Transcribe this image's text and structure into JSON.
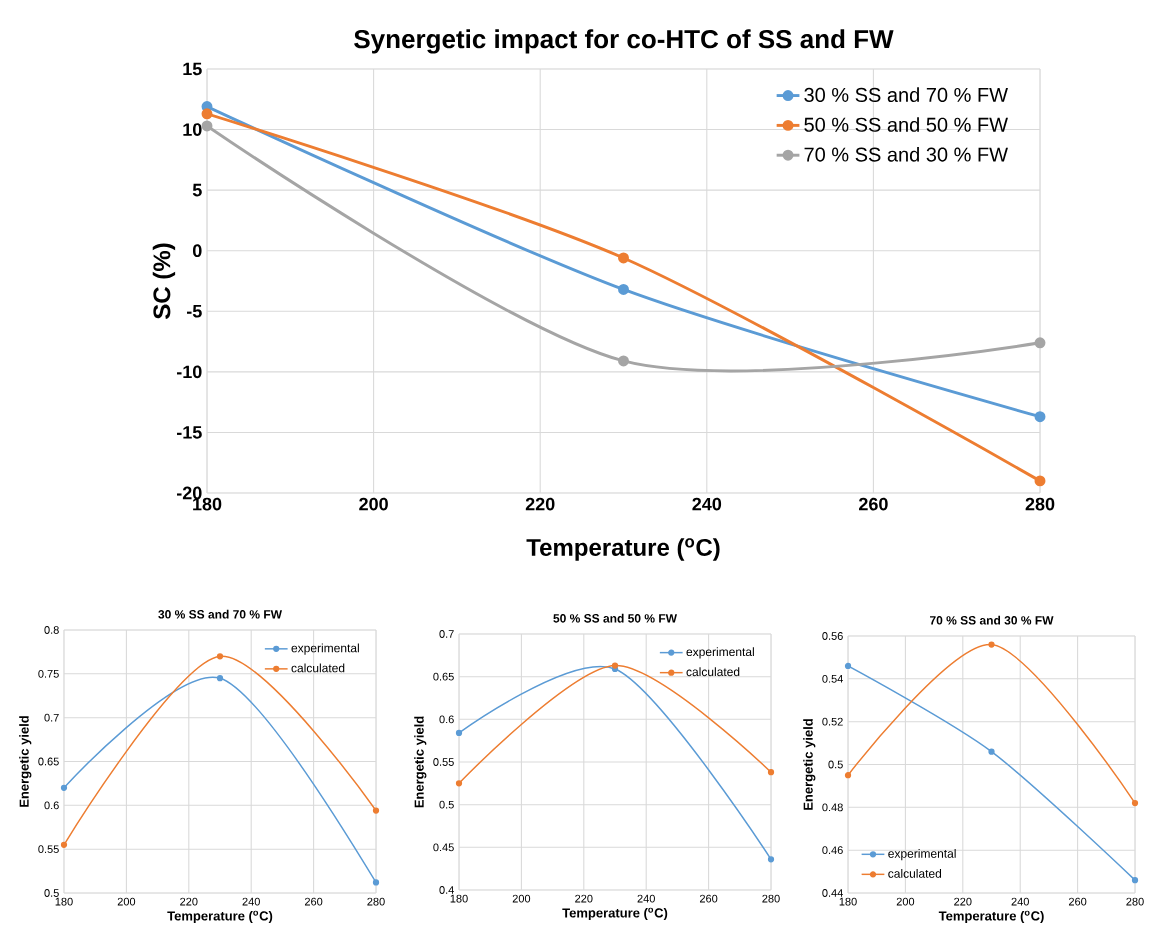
{
  "chart_data": [
    {
      "type": "line",
      "title": "Synergetic impact for co-HTC of SS and FW",
      "xlabel": "Temperature ($^{o}$C)",
      "ylabel": "SC (%)",
      "x": [
        180,
        230,
        280
      ],
      "series": [
        {
          "name": "30 % SS and 70 % FW",
          "color": "#5b9bd5",
          "values": [
            11.9,
            -3.2,
            -13.7
          ]
        },
        {
          "name": "50 % SS and 50 % FW",
          "color": "#ed7d31",
          "values": [
            11.3,
            -0.6,
            -19.0
          ]
        },
        {
          "name": "70 % SS and 30 % FW",
          "color": "#a5a5a5",
          "values": [
            10.3,
            -9.1,
            -7.6
          ]
        }
      ],
      "xlim": [
        180,
        280
      ],
      "ylim": [
        -20,
        15
      ],
      "xticks": [
        180,
        200,
        220,
        240,
        260,
        280
      ],
      "yticks": [
        -20,
        -15,
        -10,
        -5,
        0,
        5,
        10,
        15
      ],
      "grid": true,
      "legend": "top right",
      "marker": "circle"
    },
    {
      "type": "line",
      "title": "30 % SS and 70 % FW",
      "xlabel": "Temperature ($^{o}$C)",
      "ylabel": "Energetic yield",
      "x": [
        180,
        230,
        280
      ],
      "series": [
        {
          "name": "experimental",
          "color": "#5b9bd5",
          "values": [
            0.62,
            0.745,
            0.512
          ]
        },
        {
          "name": "calculated",
          "color": "#ed7d31",
          "values": [
            0.555,
            0.77,
            0.594
          ]
        }
      ],
      "xlim": [
        180,
        280
      ],
      "ylim": [
        0.5,
        0.8
      ],
      "xticks": [
        180,
        200,
        220,
        240,
        260,
        280
      ],
      "yticks": [
        0.5,
        0.55,
        0.6,
        0.65,
        0.7,
        0.75,
        0.8
      ],
      "grid": true,
      "legend": "top right",
      "marker": "circle"
    },
    {
      "type": "line",
      "title": "50 % SS and 50 % FW",
      "xlabel": "Temperature ($^{o}$C)",
      "ylabel": "Energetic yield",
      "x": [
        180,
        230,
        280
      ],
      "series": [
        {
          "name": "experimental",
          "color": "#5b9bd5",
          "values": [
            0.584,
            0.659,
            0.436
          ]
        },
        {
          "name": "calculated",
          "color": "#ed7d31",
          "values": [
            0.525,
            0.663,
            0.538
          ]
        }
      ],
      "xlim": [
        180,
        280
      ],
      "ylim": [
        0.4,
        0.7
      ],
      "xticks": [
        180,
        200,
        220,
        240,
        260,
        280
      ],
      "yticks": [
        0.4,
        0.45,
        0.5,
        0.55,
        0.6,
        0.65,
        0.7
      ],
      "grid": true,
      "legend": "top right",
      "marker": "circle"
    },
    {
      "type": "line",
      "title": "70 % SS and 30 % FW",
      "xlabel": "Temperature ($^{o}$C)",
      "ylabel": "Energetic yield",
      "x": [
        180,
        230,
        280
      ],
      "series": [
        {
          "name": "experimental",
          "color": "#5b9bd5",
          "values": [
            0.546,
            0.506,
            0.446
          ]
        },
        {
          "name": "calculated",
          "color": "#ed7d31",
          "values": [
            0.495,
            0.556,
            0.482
          ]
        }
      ],
      "xlim": [
        180,
        280
      ],
      "ylim": [
        0.44,
        0.56
      ],
      "xticks": [
        180,
        200,
        220,
        240,
        260,
        280
      ],
      "yticks": [
        0.44,
        0.46,
        0.48,
        0.5,
        0.52,
        0.54,
        0.56
      ],
      "grid": true,
      "legend": "bottom left",
      "marker": "circle"
    }
  ]
}
